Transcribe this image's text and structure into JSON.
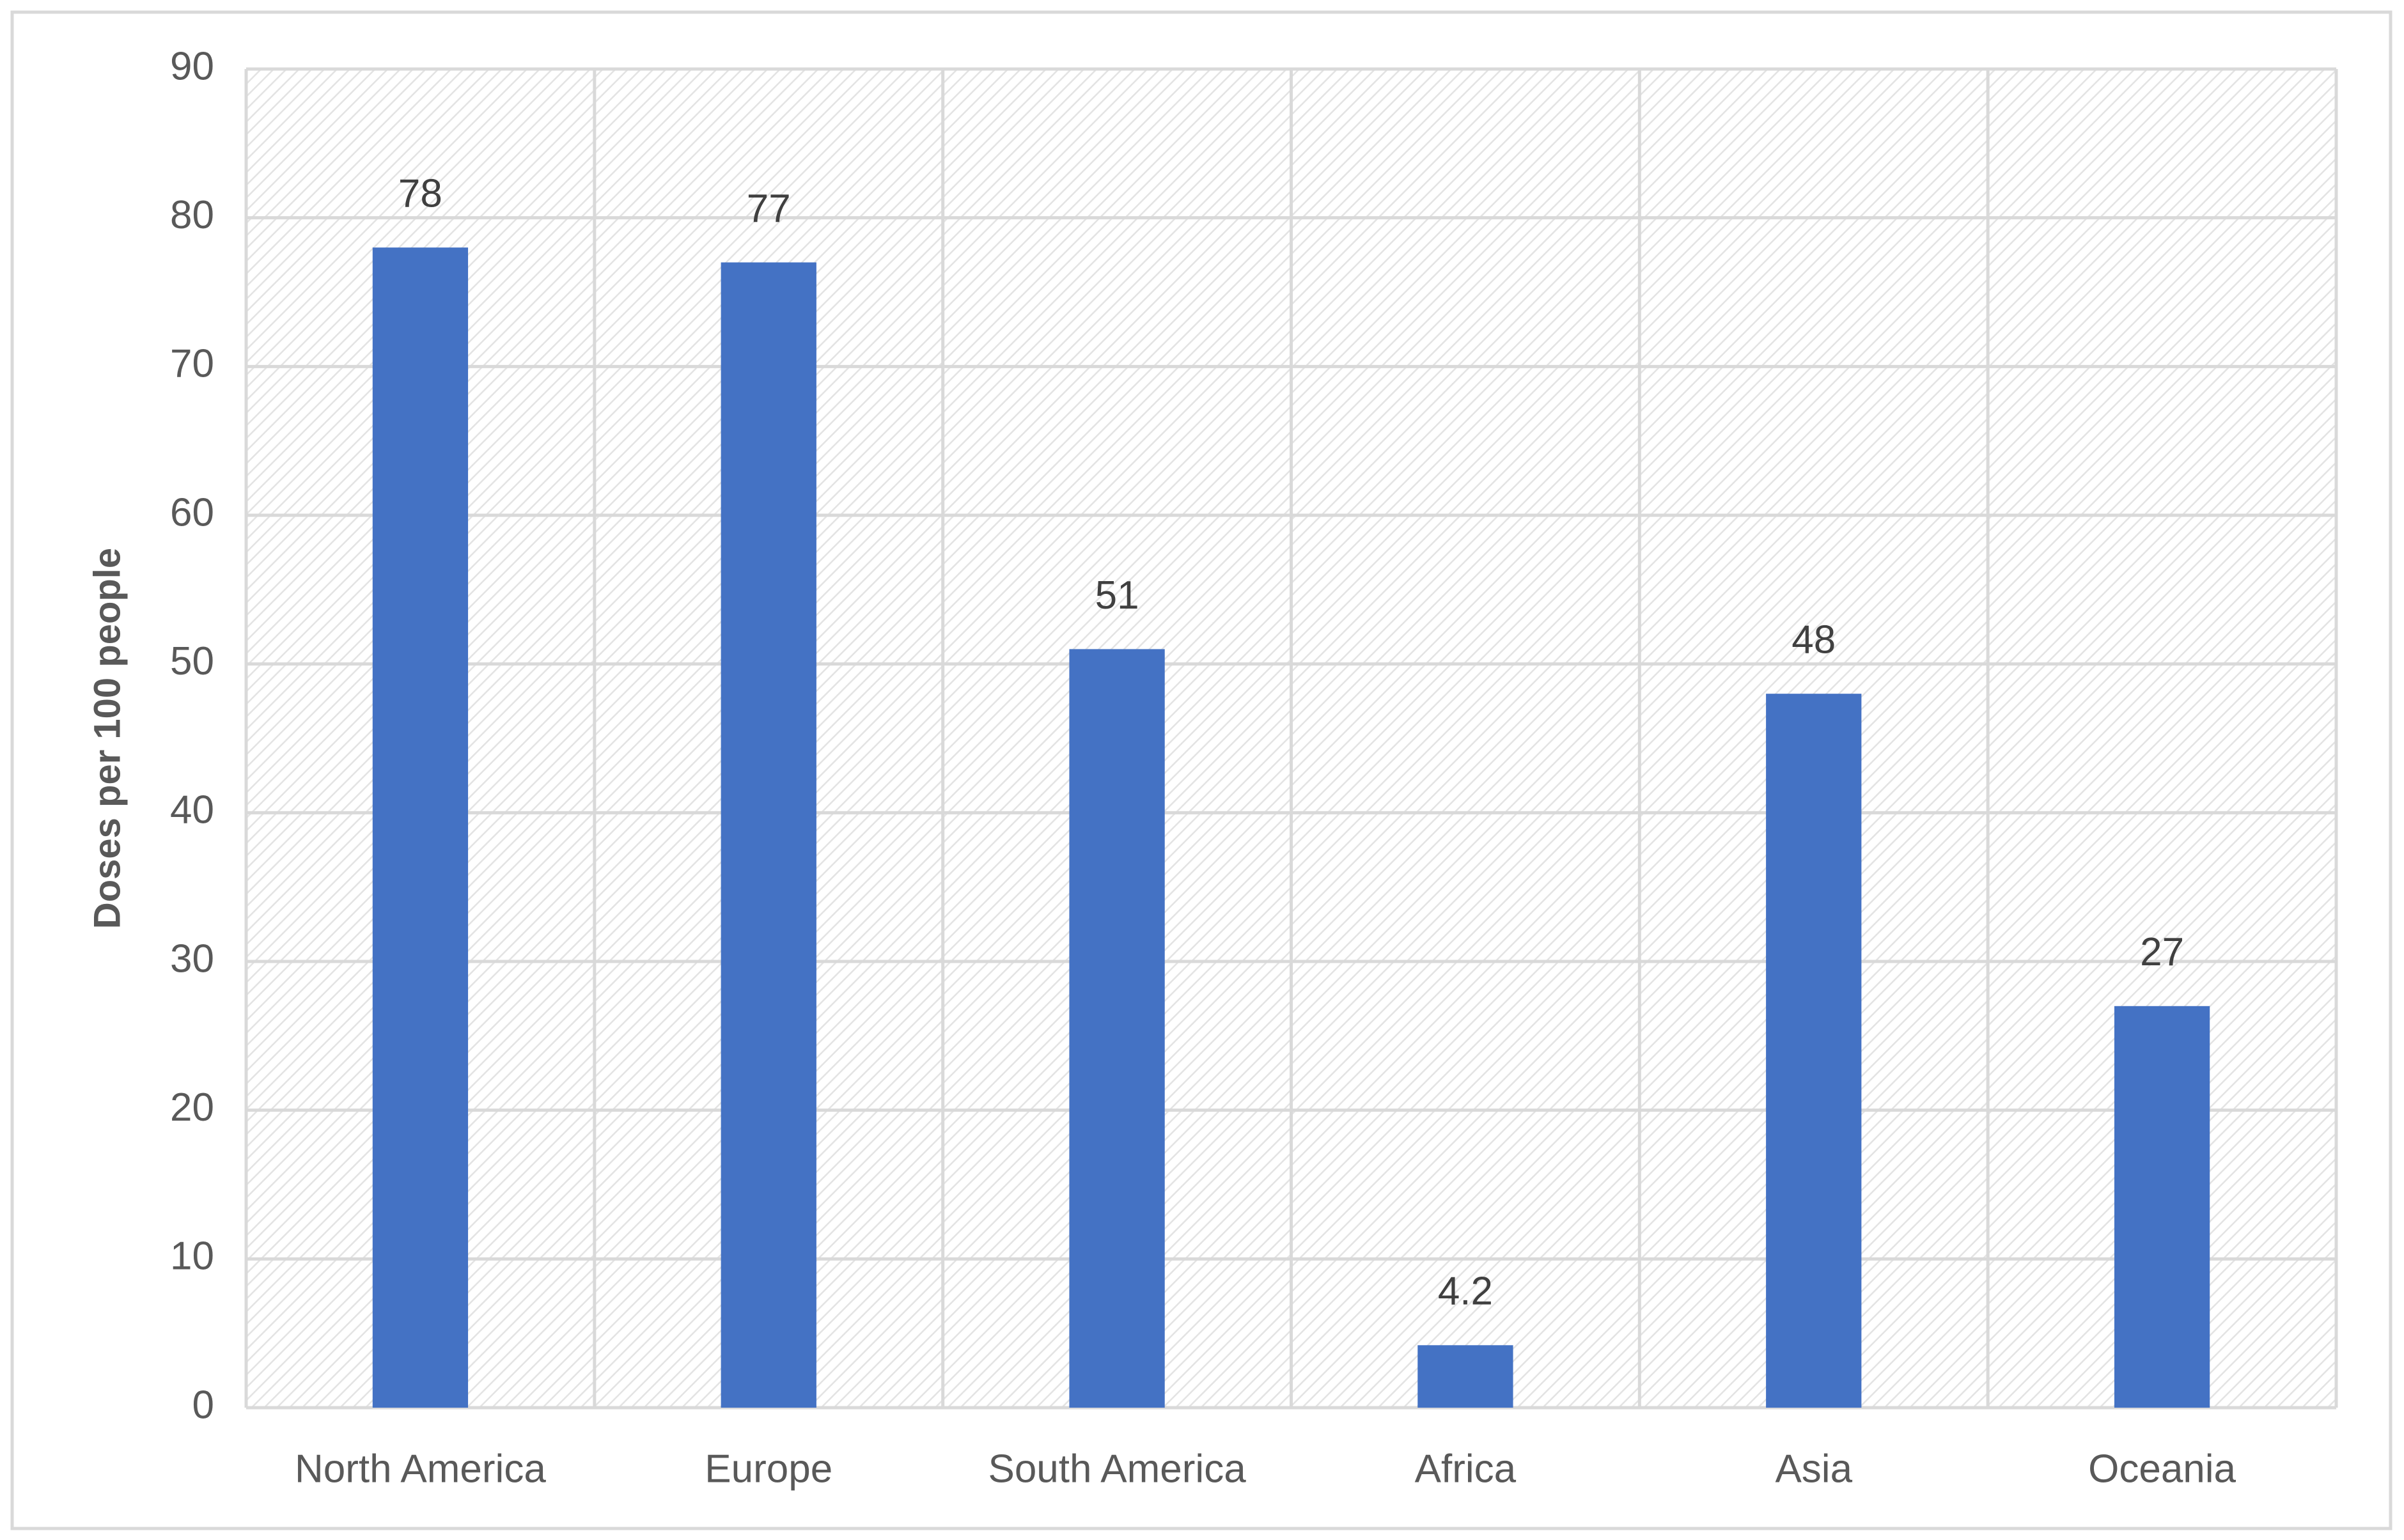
{
  "chart_data": {
    "type": "bar",
    "y_label": "Doses per 100 people",
    "categories": [
      "North America",
      "Europe",
      "South America",
      "Africa",
      "Asia",
      "Oceania"
    ],
    "values": [
      78,
      77,
      51,
      4.2,
      48,
      27
    ],
    "color": "#4472c4",
    "ylim": [
      0,
      90
    ],
    "yticks": [
      0,
      10,
      20,
      30,
      40,
      50,
      60,
      70,
      80,
      90
    ],
    "grid": true
  }
}
